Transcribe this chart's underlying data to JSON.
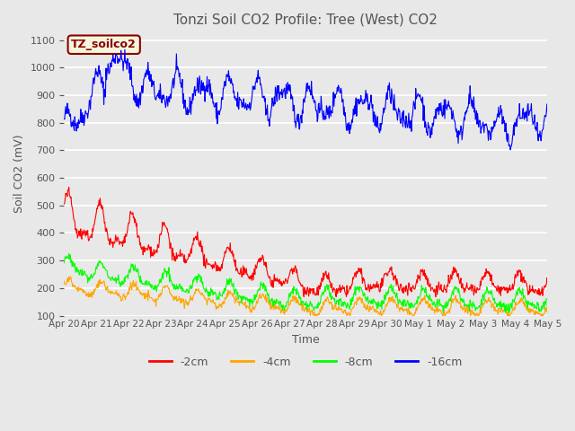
{
  "title": "Tonzi Soil CO2 Profile: Tree (West) CO2",
  "ylabel": "Soil CO2 (mV)",
  "xlabel": "Time",
  "ylim": [
    100,
    1130
  ],
  "yticks": [
    100,
    200,
    300,
    400,
    500,
    600,
    700,
    800,
    900,
    1000,
    1100
  ],
  "xtick_labels": [
    "Apr 20",
    "Apr 21",
    "Apr 22",
    "Apr 23",
    "Apr 24",
    "Apr 25",
    "Apr 26",
    "Apr 27",
    "Apr 28",
    "Apr 29",
    "Apr 30",
    "May 1",
    "May 2",
    "May 3",
    "May 4",
    "May 5"
  ],
  "legend_labels": [
    "-2cm",
    "-4cm",
    "-8cm",
    "-16cm"
  ],
  "legend_colors": [
    "red",
    "orange",
    "lime",
    "blue"
  ],
  "line_colors": {
    "m16cm": "blue",
    "m2cm": "red",
    "m4cm": "orange",
    "m8cm": "lime"
  },
  "annotation_text": "TZ_soilco2",
  "annotation_fg": "#8B0000",
  "annotation_bg": "#F5F5DC",
  "plot_bg": "#E8E8E8",
  "title_color": "#555555",
  "axis_label_color": "#555555",
  "tick_color": "#555555",
  "grid_color": "white",
  "n_points": 900
}
